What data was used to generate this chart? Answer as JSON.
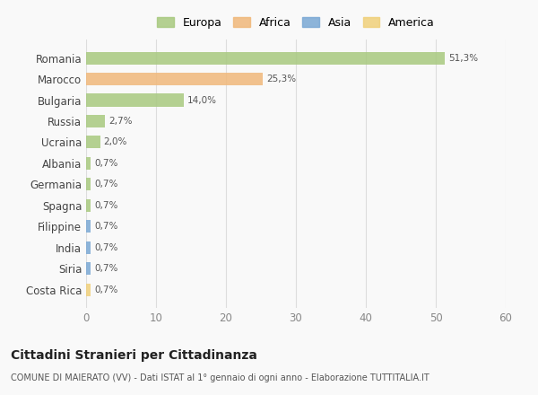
{
  "categories": [
    "Romania",
    "Marocco",
    "Bulgaria",
    "Russia",
    "Ucraina",
    "Albania",
    "Germania",
    "Spagna",
    "Filippine",
    "India",
    "Siria",
    "Costa Rica"
  ],
  "values": [
    51.3,
    25.3,
    14.0,
    2.7,
    2.0,
    0.7,
    0.7,
    0.7,
    0.7,
    0.7,
    0.7,
    0.7
  ],
  "colors": [
    "#a8c97f",
    "#f0b87a",
    "#a8c97f",
    "#a8c97f",
    "#a8c97f",
    "#a8c97f",
    "#a8c97f",
    "#a8c97f",
    "#7aa8d4",
    "#7aa8d4",
    "#7aa8d4",
    "#f0d07a"
  ],
  "labels": [
    "51,3%",
    "25,3%",
    "14,0%",
    "2,7%",
    "2,0%",
    "0,7%",
    "0,7%",
    "0,7%",
    "0,7%",
    "0,7%",
    "0,7%",
    "0,7%"
  ],
  "legend_labels": [
    "Europa",
    "Africa",
    "Asia",
    "America"
  ],
  "legend_colors": [
    "#a8c97f",
    "#f0b87a",
    "#7aa8d4",
    "#f0d07a"
  ],
  "xlim": [
    0,
    60
  ],
  "xticks": [
    0,
    10,
    20,
    30,
    40,
    50,
    60
  ],
  "title": "Cittadini Stranieri per Cittadinanza",
  "subtitle": "COMUNE DI MAIERATO (VV) - Dati ISTAT al 1° gennaio di ogni anno - Elaborazione TUTTITALIA.IT",
  "bg_color": "#f9f9f9",
  "bar_alpha": 0.85,
  "figsize": [
    6.0,
    4.4
  ],
  "dpi": 100
}
